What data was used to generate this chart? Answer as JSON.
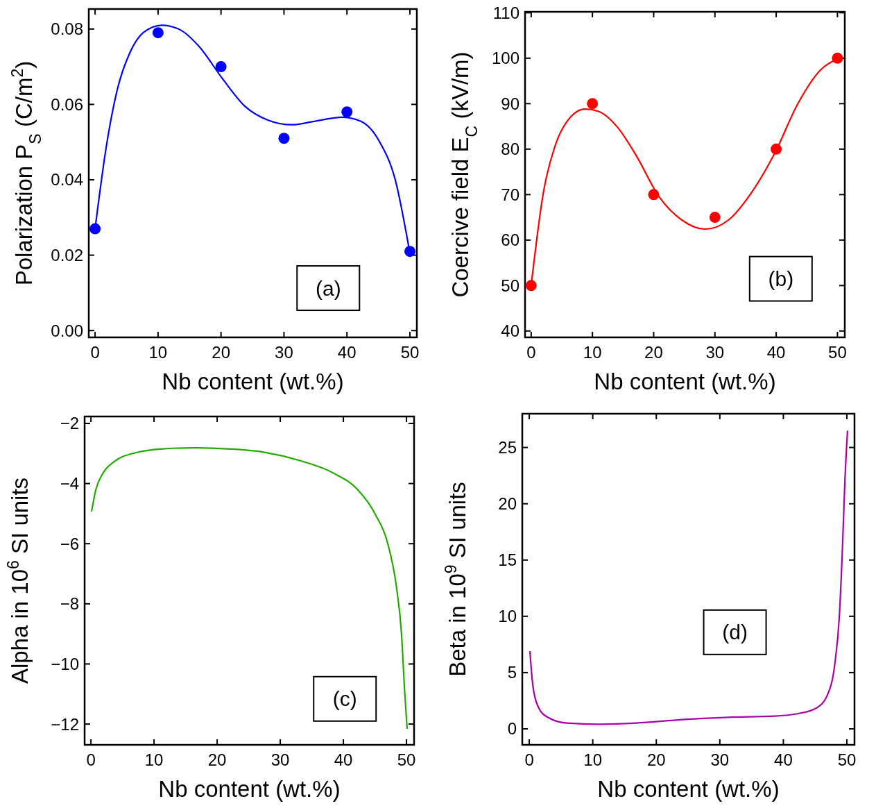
{
  "chart_data": [
    {
      "type": "scatter",
      "xlabel": "Nb content (wt.%)",
      "ylabel": "Polarization P$_{S}$ (C/m$^{2}$)",
      "xlim": [
        -1,
        51.1
      ],
      "ylim": [
        -0.0018,
        0.0853
      ],
      "xticks": [
        0,
        10,
        20,
        30,
        40,
        50
      ],
      "yticks": [
        {
          "value": 0,
          "label": "0.00"
        },
        0.02,
        0.04,
        0.06,
        0.08
      ],
      "grid": false,
      "annotations": [
        "(a)"
      ],
      "series": [
        {
          "type": "line",
          "color": "#0000ff",
          "marker": "none",
          "x": [
            0,
            1.8,
            3.6,
            5.5,
            7.7,
            10.6,
            13.5,
            16.5,
            20.2,
            23.8,
            27.5,
            31.2,
            34.8,
            39.2,
            42.2,
            45.1,
            47.7,
            49.9
          ],
          "values": [
            0.027,
            0.049,
            0.0644,
            0.0736,
            0.0791,
            0.081,
            0.0798,
            0.0754,
            0.0669,
            0.0595,
            0.0558,
            0.0546,
            0.0555,
            0.0566,
            0.0555,
            0.0503,
            0.0398,
            0.0214
          ]
        },
        {
          "color": "#0000ff",
          "marker": "circle",
          "x": [
            0,
            10,
            20,
            30,
            40,
            50
          ],
          "values": [
            0.027,
            0.079,
            0.07,
            0.051,
            0.058,
            0.021
          ]
        }
      ]
    },
    {
      "type": "scatter",
      "xlabel": "Nb content (wt.%)",
      "ylabel": "Coercive field E$_{C}$ (kV/m)",
      "xlim": [
        -1,
        51.2
      ],
      "ylim": [
        38.6,
        110.2
      ],
      "xticks": [
        0,
        10,
        20,
        30,
        40,
        50
      ],
      "yticks": [
        40,
        50,
        60,
        70,
        80,
        90,
        100,
        110
      ],
      "grid": false,
      "annotations": [
        "(b)"
      ],
      "series": [
        {
          "type": "line",
          "color": "#ff0000",
          "marker": "none",
          "x": [
            0,
            2,
            3.9,
            5.7,
            8.8,
            11,
            14.1,
            17.1,
            20.9,
            24.6,
            28.4,
            32.2,
            36,
            39.8,
            43.5,
            47.3,
            50
          ],
          "values": [
            50,
            70.5,
            80.7,
            85.8,
            88.8,
            88.3,
            84.8,
            78.7,
            69.5,
            64.4,
            62.4,
            64.4,
            70.5,
            79.2,
            89.9,
            97.5,
            99.8
          ]
        },
        {
          "color": "#ff0000",
          "marker": "circle",
          "x": [
            0,
            10,
            20,
            30,
            40,
            50
          ],
          "values": [
            50,
            90,
            70,
            65,
            80,
            100
          ]
        }
      ]
    },
    {
      "type": "line",
      "xlabel": "Nb content (wt.%)",
      "ylabel": "Alpha in 10$^{6}$ SI units",
      "xlim": [
        -1,
        51.2
      ],
      "ylim": [
        -12.69,
        -1.77
      ],
      "xticks": [
        0,
        10,
        20,
        30,
        40,
        50
      ],
      "yticks": [
        {
          "value": -2,
          "label": "−2"
        },
        {
          "value": -4,
          "label": "−4"
        },
        {
          "value": -6,
          "label": "−6"
        },
        {
          "value": -8,
          "label": "−8"
        },
        {
          "value": -10,
          "label": "−10"
        },
        {
          "value": -12,
          "label": "−12"
        }
      ],
      "grid": false,
      "marker": "none",
      "annotations": [
        "(c)"
      ],
      "series": [
        {
          "color": "#22aa00",
          "x": [
            0.1,
            0.8,
            1.9,
            3.7,
            7.4,
            11.1,
            16.6,
            22.1,
            27.5,
            33,
            38.5,
            42.2,
            45.1,
            47,
            48.4,
            49.2,
            49.7,
            50.1
          ],
          "values": [
            -4.93,
            -4.19,
            -3.66,
            -3.27,
            -2.96,
            -2.85,
            -2.81,
            -2.85,
            -2.96,
            -3.23,
            -3.66,
            -4.19,
            -5.04,
            -5.97,
            -7.43,
            -8.97,
            -10.89,
            -12.16
          ]
        }
      ]
    },
    {
      "type": "line",
      "xlabel": "Nb content (wt.%)",
      "ylabel": "Beta in 10$^{9}$ SI units",
      "xlim": [
        -1.1,
        51.2
      ],
      "ylim": [
        -1.42,
        28
      ],
      "xticks": [
        0,
        10,
        20,
        30,
        40,
        50
      ],
      "yticks": [
        0,
        5,
        10,
        15,
        20,
        25
      ],
      "grid": false,
      "marker": "none",
      "annotations": [
        "(d)"
      ],
      "series": [
        {
          "color": "#aa00aa",
          "x": [
            0.1,
            0.6,
            1.5,
            2.9,
            5.9,
            11,
            16.8,
            24.1,
            31.3,
            38.6,
            42.2,
            45.2,
            47,
            48.1,
            48.8,
            49.3,
            49.7,
            50.1
          ],
          "values": [
            6.9,
            3.7,
            1.85,
            1.03,
            0.51,
            0.41,
            0.51,
            0.82,
            1.03,
            1.13,
            1.34,
            1.85,
            3.09,
            5.76,
            9.88,
            16,
            22.2,
            26.5
          ]
        }
      ]
    }
  ]
}
